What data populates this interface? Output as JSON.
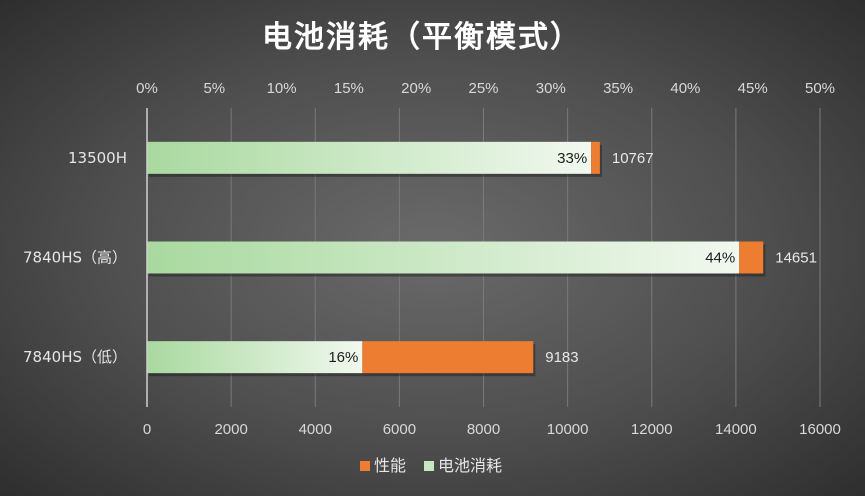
{
  "chart_data": {
    "type": "bar",
    "orientation": "horizontal",
    "stacked": true,
    "title": "电池消耗（平衡模式）",
    "categories": [
      "13500H",
      "7840HS（高）",
      "7840HS（低）"
    ],
    "series": [
      {
        "name": "电池消耗",
        "color": "#c6e7c0",
        "percent_values": [
          33,
          44,
          16
        ],
        "percent_labels": [
          "33%",
          "44%",
          "16%"
        ]
      },
      {
        "name": "性能",
        "color": "#ed7d31",
        "values": [
          10767,
          14651,
          9183
        ],
        "value_labels": [
          "10767",
          "14651",
          "9183"
        ]
      }
    ],
    "x_axis_bottom": {
      "range": [
        0,
        16000
      ],
      "ticks": [
        "0",
        "2000",
        "4000",
        "6000",
        "8000",
        "10000",
        "12000",
        "14000",
        "16000"
      ]
    },
    "x_axis_top": {
      "range": [
        0,
        50
      ],
      "ticks": [
        "0%",
        "5%",
        "10%",
        "15%",
        "20%",
        "25%",
        "30%",
        "35%",
        "40%",
        "45%",
        "50%"
      ]
    },
    "grid": true,
    "legend_position": "bottom"
  }
}
